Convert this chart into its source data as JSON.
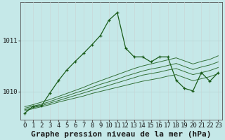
{
  "title": "Graphe pression niveau de la mer (hPa)",
  "background_color": "#c5e8e8",
  "grid_color": "#aed4d4",
  "line_color": "#1a5c1a",
  "x_labels": [
    "0",
    "1",
    "2",
    "3",
    "4",
    "5",
    "6",
    "7",
    "8",
    "9",
    "10",
    "11",
    "12",
    "13",
    "14",
    "15",
    "16",
    "17",
    "18",
    "19",
    "20",
    "21",
    "22",
    "23"
  ],
  "ylim": [
    1009.45,
    1011.75
  ],
  "yticks": [
    1010,
    1011
  ],
  "flat_series": [
    [
      1009.62,
      1009.66,
      1009.7,
      1009.74,
      1009.79,
      1009.83,
      1009.87,
      1009.91,
      1009.96,
      1010.0,
      1010.04,
      1010.08,
      1010.12,
      1010.16,
      1010.2,
      1010.23,
      1010.26,
      1010.3,
      1010.33,
      1010.27,
      1010.21,
      1010.25,
      1010.29,
      1010.35
    ],
    [
      1009.64,
      1009.68,
      1009.72,
      1009.77,
      1009.82,
      1009.87,
      1009.92,
      1009.97,
      1010.02,
      1010.07,
      1010.12,
      1010.17,
      1010.22,
      1010.27,
      1010.32,
      1010.35,
      1010.38,
      1010.42,
      1010.45,
      1010.39,
      1010.33,
      1010.37,
      1010.41,
      1010.47
    ],
    [
      1009.67,
      1009.71,
      1009.75,
      1009.8,
      1009.86,
      1009.91,
      1009.97,
      1010.02,
      1010.08,
      1010.14,
      1010.19,
      1010.24,
      1010.3,
      1010.35,
      1010.4,
      1010.44,
      1010.47,
      1010.51,
      1010.55,
      1010.49,
      1010.43,
      1010.48,
      1010.52,
      1010.58
    ],
    [
      1009.7,
      1009.74,
      1009.79,
      1009.84,
      1009.9,
      1009.96,
      1010.02,
      1010.08,
      1010.15,
      1010.21,
      1010.27,
      1010.33,
      1010.39,
      1010.45,
      1010.5,
      1010.54,
      1010.58,
      1010.62,
      1010.66,
      1010.6,
      1010.54,
      1010.59,
      1010.63,
      1010.7
    ]
  ],
  "main_series": [
    1009.57,
    1009.71,
    1009.72,
    1009.97,
    1010.21,
    1010.42,
    1010.59,
    1010.75,
    1010.92,
    1011.1,
    1011.4,
    1011.55,
    1010.85,
    1010.68,
    1010.68,
    1010.58,
    1010.68,
    1010.68,
    1010.22,
    1010.06,
    1010.01,
    1010.37,
    1010.2,
    1010.37
  ],
  "title_fontsize": 8,
  "tick_fontsize": 6.5
}
